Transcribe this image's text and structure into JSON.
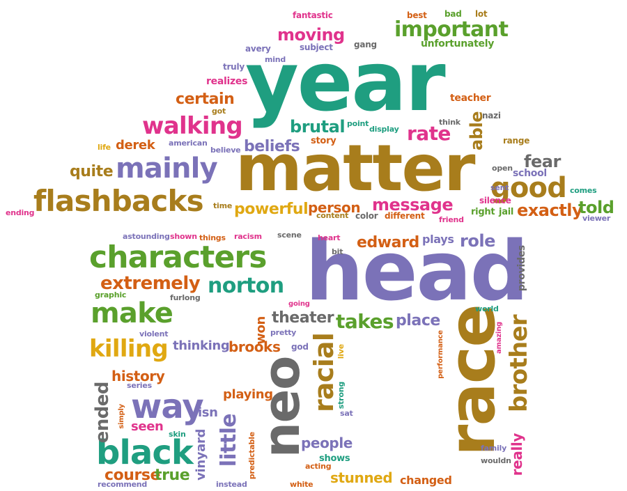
{
  "words": {
    "year": "year",
    "matter": "matter",
    "head": "head",
    "race": "race",
    "neo": "neo",
    "characters": "characters",
    "flashbacks": "flashbacks",
    "mainly": "mainly",
    "walking": "walking",
    "good": "good",
    "important": "important",
    "moving": "moving",
    "black": "black",
    "way": "way",
    "racial": "racial",
    "brother": "brother",
    "make": "make",
    "killing": "killing",
    "norton": "norton",
    "extremely": "extremely",
    "takes": "takes",
    "place": "place",
    "message": "message",
    "powerful": "powerful",
    "person": "person",
    "exactly": "exactly",
    "told": "told",
    "rate": "rate",
    "brutal": "brutal",
    "beliefs": "beliefs",
    "certain": "certain",
    "quite": "quite",
    "derek": "derek",
    "edward": "edward",
    "plays": "plays",
    "role": "role",
    "theater": "theater",
    "won": "won",
    "thinking": "thinking",
    "brooks": "brooks",
    "history": "history",
    "playing": "playing",
    "ended": "ended",
    "little": "little",
    "vinyard": "vinyard",
    "isn": "isn",
    "seen": "seen",
    "course": "course",
    "true": "true",
    "people": "people",
    "stunned": "stunned",
    "changed": "changed",
    "really": "really",
    "fear": "fear",
    "school": "school",
    "able": "able",
    "realizes": "realizes",
    "teacher": "teacher",
    "fantastic": "fantastic",
    "best": "best",
    "bad": "bad",
    "lot": "lot",
    "unfortunately": "unfortunately",
    "avery": "avery",
    "subject": "subject",
    "gang": "gang",
    "truly": "truly",
    "mind": "mind",
    "got": "got",
    "point": "point",
    "display": "display",
    "think": "think",
    "nazi": "nazi",
    "range": "range",
    "life": "life",
    "american": "american",
    "believe": "believe",
    "story": "story",
    "open": "open",
    "sent": "sent",
    "silence": "silence",
    "comes": "comes",
    "right": "right",
    "jail": "jail",
    "friend": "friend",
    "viewer": "viewer",
    "ending": "ending",
    "time": "time",
    "content": "content",
    "color": "color",
    "different": "different",
    "astounding": "astounding",
    "shown": "shown",
    "things": "things",
    "racism": "racism",
    "scene": "scene",
    "heart": "heart",
    "bit": "bit",
    "graphic": "graphic",
    "furlong": "furlong",
    "going": "going",
    "violent": "violent",
    "pretty": "pretty",
    "god": "god",
    "live": "live",
    "series": "series",
    "strong": "strong",
    "simply": "simply",
    "skin": "skin",
    "sat": "sat",
    "predictable": "predictable",
    "recommend": "recommend",
    "instead": "instead",
    "white": "white",
    "acting": "acting",
    "shows": "shows",
    "performance": "performance",
    "amazing": "amazing",
    "provides": "provides",
    "world": "world",
    "family": "family",
    "wouldn": "wouldn"
  }
}
